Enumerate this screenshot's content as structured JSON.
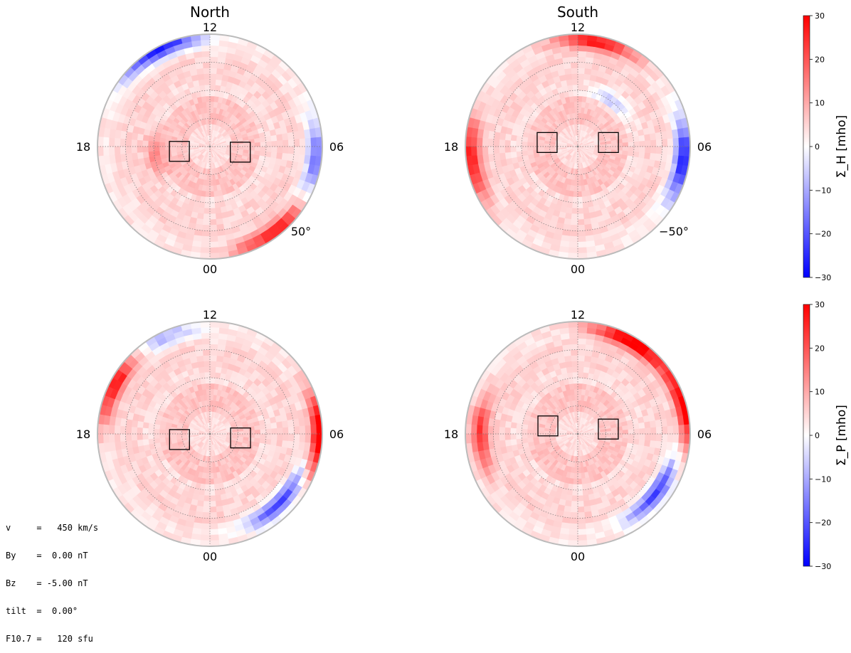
{
  "chart_data": [
    {
      "type": "polar-map",
      "panel": "north-hall",
      "title": "North",
      "hemisphere": "north",
      "quantity": "Σ_H",
      "mlt_labels": [
        "12",
        "18",
        "06",
        "00"
      ],
      "latitude_label": "50°",
      "latitude_range": [
        50,
        90
      ],
      "boxes_mlt": [
        18.6,
        5.3
      ],
      "features": [
        {
          "mlt": 13.8,
          "lat": 51,
          "value": -30
        },
        {
          "mlt": 2.5,
          "lat": 52,
          "value": 25
        },
        {
          "mlt": 5.5,
          "lat": 52,
          "value": -20
        },
        {
          "mlt": 18.5,
          "lat": 70,
          "value": 10
        }
      ]
    },
    {
      "type": "polar-map",
      "panel": "south-hall",
      "title": "South",
      "hemisphere": "south",
      "quantity": "Σ_H",
      "mlt_labels": [
        "12",
        "18",
        "06",
        "00"
      ],
      "latitude_label": "−50°",
      "latitude_range": [
        -50,
        -90
      ],
      "boxes_mlt": [
        17.5,
        6.5
      ],
      "features": [
        {
          "mlt": 11.3,
          "lat": -52,
          "value": 25
        },
        {
          "mlt": 5.5,
          "lat": -52,
          "value": -30
        },
        {
          "mlt": 18.5,
          "lat": -52,
          "value": 25
        },
        {
          "mlt": 9.5,
          "lat": -70,
          "value": -10
        }
      ]
    },
    {
      "type": "polar-map",
      "panel": "north-pedersen",
      "title": "",
      "hemisphere": "north",
      "quantity": "Σ_P",
      "mlt_labels": [
        "12",
        "18",
        "06",
        "00"
      ],
      "latitude_range": [
        50,
        90
      ],
      "boxes_mlt": [
        18.7,
        5.5
      ],
      "features": [
        {
          "mlt": 16.0,
          "lat": 52,
          "value": 28
        },
        {
          "mlt": 14.0,
          "lat": 52,
          "value": -15
        },
        {
          "mlt": 6.0,
          "lat": 51,
          "value": 30
        },
        {
          "mlt": 3.0,
          "lat": 55,
          "value": -25
        }
      ]
    },
    {
      "type": "polar-map",
      "panel": "south-pedersen",
      "title": "",
      "hemisphere": "south",
      "quantity": "Σ_P",
      "mlt_labels": [
        "12",
        "18",
        "06",
        "00"
      ],
      "latitude_range": [
        -50,
        -90
      ],
      "boxes_mlt": [
        17.0,
        6.6
      ],
      "features": [
        {
          "mlt": 10.0,
          "lat": -52,
          "value": 30
        },
        {
          "mlt": 7.0,
          "lat": -51,
          "value": 28
        },
        {
          "mlt": 3.5,
          "lat": -55,
          "value": -25
        },
        {
          "mlt": 18.0,
          "lat": -55,
          "value": 20
        }
      ]
    }
  ],
  "colorbars": [
    {
      "label": "Σ_H [mho]",
      "ticks": [
        "30",
        "20",
        "10",
        "0",
        "−10",
        "−20",
        "−30"
      ],
      "vmin": -30,
      "vmax": 30
    },
    {
      "label": "Σ_P [mho]",
      "ticks": [
        "30",
        "20",
        "10",
        "0",
        "−10",
        "−20",
        "−30"
      ],
      "vmin": -30,
      "vmax": 30
    }
  ],
  "parameters": [
    "v     =   450 km/s",
    "By    =  0.00 nT",
    "Bz    = -5.00 nT",
    "tilt  =  0.00°",
    "F10.7 =   120 sfu"
  ],
  "colors": {
    "positive": "#ff0000",
    "negative": "#0000ff",
    "neutral": "#ffffff"
  }
}
